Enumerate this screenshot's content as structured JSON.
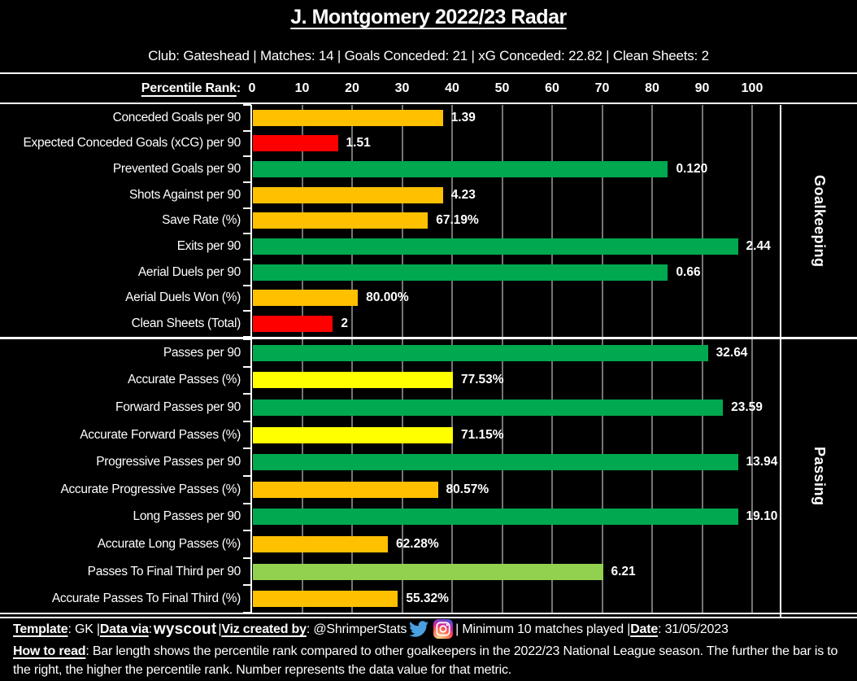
{
  "header": {
    "title": "J. Montgomery 2022/23 Radar",
    "subtitle": "Club: Gateshead | Matches: 14 | Goals Conceded: 21 | xG Conceded: 22.82 | Clean Sheets: 2"
  },
  "axis": {
    "label": "Percentile Rank",
    "colon": ":",
    "ticks": [
      "0",
      "10",
      "20",
      "30",
      "40",
      "50",
      "60",
      "70",
      "80",
      "90",
      "100"
    ]
  },
  "palette": {
    "green": "#00a84f",
    "lightgreen": "#92d050",
    "yellow": "#ffff00",
    "orange": "#ffc000",
    "red": "#fe0000",
    "gridline": "#757575",
    "text": "#ffffff",
    "twitter_blue": "#4a9fe0"
  },
  "chart_data": {
    "type": "bar",
    "orientation": "horizontal",
    "x_label": "Percentile Rank",
    "xlim": [
      0,
      100
    ],
    "x_ticks": [
      0,
      10,
      20,
      30,
      40,
      50,
      60,
      70,
      80,
      90,
      100
    ],
    "grid": true,
    "note": "bar length = percentile rank; printed number = raw data value",
    "sections": [
      {
        "name": "Goalkeeping",
        "metrics": [
          {
            "label": "Conceded Goals per 90",
            "percentile": 38,
            "value": "1.39",
            "color": "orange"
          },
          {
            "label": "Expected Conceded Goals (xCG) per 90",
            "percentile": 17,
            "value": "1.51",
            "color": "red"
          },
          {
            "label": "Prevented Goals per 90",
            "percentile": 83,
            "value": "0.120",
            "color": "green"
          },
          {
            "label": "Shots Against per 90",
            "percentile": 38,
            "value": "4.23",
            "color": "orange"
          },
          {
            "label": "Save Rate (%)",
            "percentile": 35,
            "value": "67.19%",
            "color": "orange"
          },
          {
            "label": "Exits per 90",
            "percentile": 97,
            "value": "2.44",
            "color": "green"
          },
          {
            "label": "Aerial Duels per 90",
            "percentile": 83,
            "value": "0.66",
            "color": "green"
          },
          {
            "label": "Aerial Duels Won (%)",
            "percentile": 21,
            "value": "80.00%",
            "color": "orange"
          },
          {
            "label": "Clean Sheets (Total)",
            "percentile": 16,
            "value": "2",
            "color": "red"
          }
        ]
      },
      {
        "name": "Passing",
        "metrics": [
          {
            "label": "Passes per 90",
            "percentile": 91,
            "value": "32.64",
            "color": "green"
          },
          {
            "label": "Accurate Passes (%)",
            "percentile": 40,
            "value": "77.53%",
            "color": "yellow"
          },
          {
            "label": "Forward Passes per 90",
            "percentile": 94,
            "value": "23.59",
            "color": "green"
          },
          {
            "label": "Accurate Forward Passes (%)",
            "percentile": 40,
            "value": "71.15%",
            "color": "yellow"
          },
          {
            "label": "Progressive Passes per 90",
            "percentile": 97,
            "value": "13.94",
            "color": "green"
          },
          {
            "label": "Accurate Progressive Passes (%)",
            "percentile": 37,
            "value": "80.57%",
            "color": "orange"
          },
          {
            "label": "Long Passes per 90",
            "percentile": 97,
            "value": "19.10",
            "color": "green"
          },
          {
            "label": "Accurate Long Passes (%)",
            "percentile": 27,
            "value": "62.28%",
            "color": "orange"
          },
          {
            "label": "Passes To Final Third per 90",
            "percentile": 70,
            "value": "6.21",
            "color": "lightgreen"
          },
          {
            "label": "Accurate Passes To Final Third (%)",
            "percentile": 29,
            "value": "55.32%",
            "color": "orange"
          }
        ]
      }
    ]
  },
  "footer": {
    "template_label": "Template",
    "template_rest": ": GK | ",
    "datavia_label": "Data via",
    "datavia_colon": ": ",
    "wyscout_logo": "wyscout",
    "sep_after_wyscout": " | ",
    "viz_label": "Viz created by",
    "viz_rest": ": @ShrimperStats",
    "after_icons": " | Minimum 10 matches played | ",
    "date_label": "Date",
    "date_rest": ": 31/05/2023",
    "howto_label": "How to read",
    "howto_text": ": Bar length shows the percentile rank compared to other goalkeepers in the 2022/23 National League season. The further the bar is to the right, the higher the percentile rank. Number represents the data value for that metric."
  }
}
